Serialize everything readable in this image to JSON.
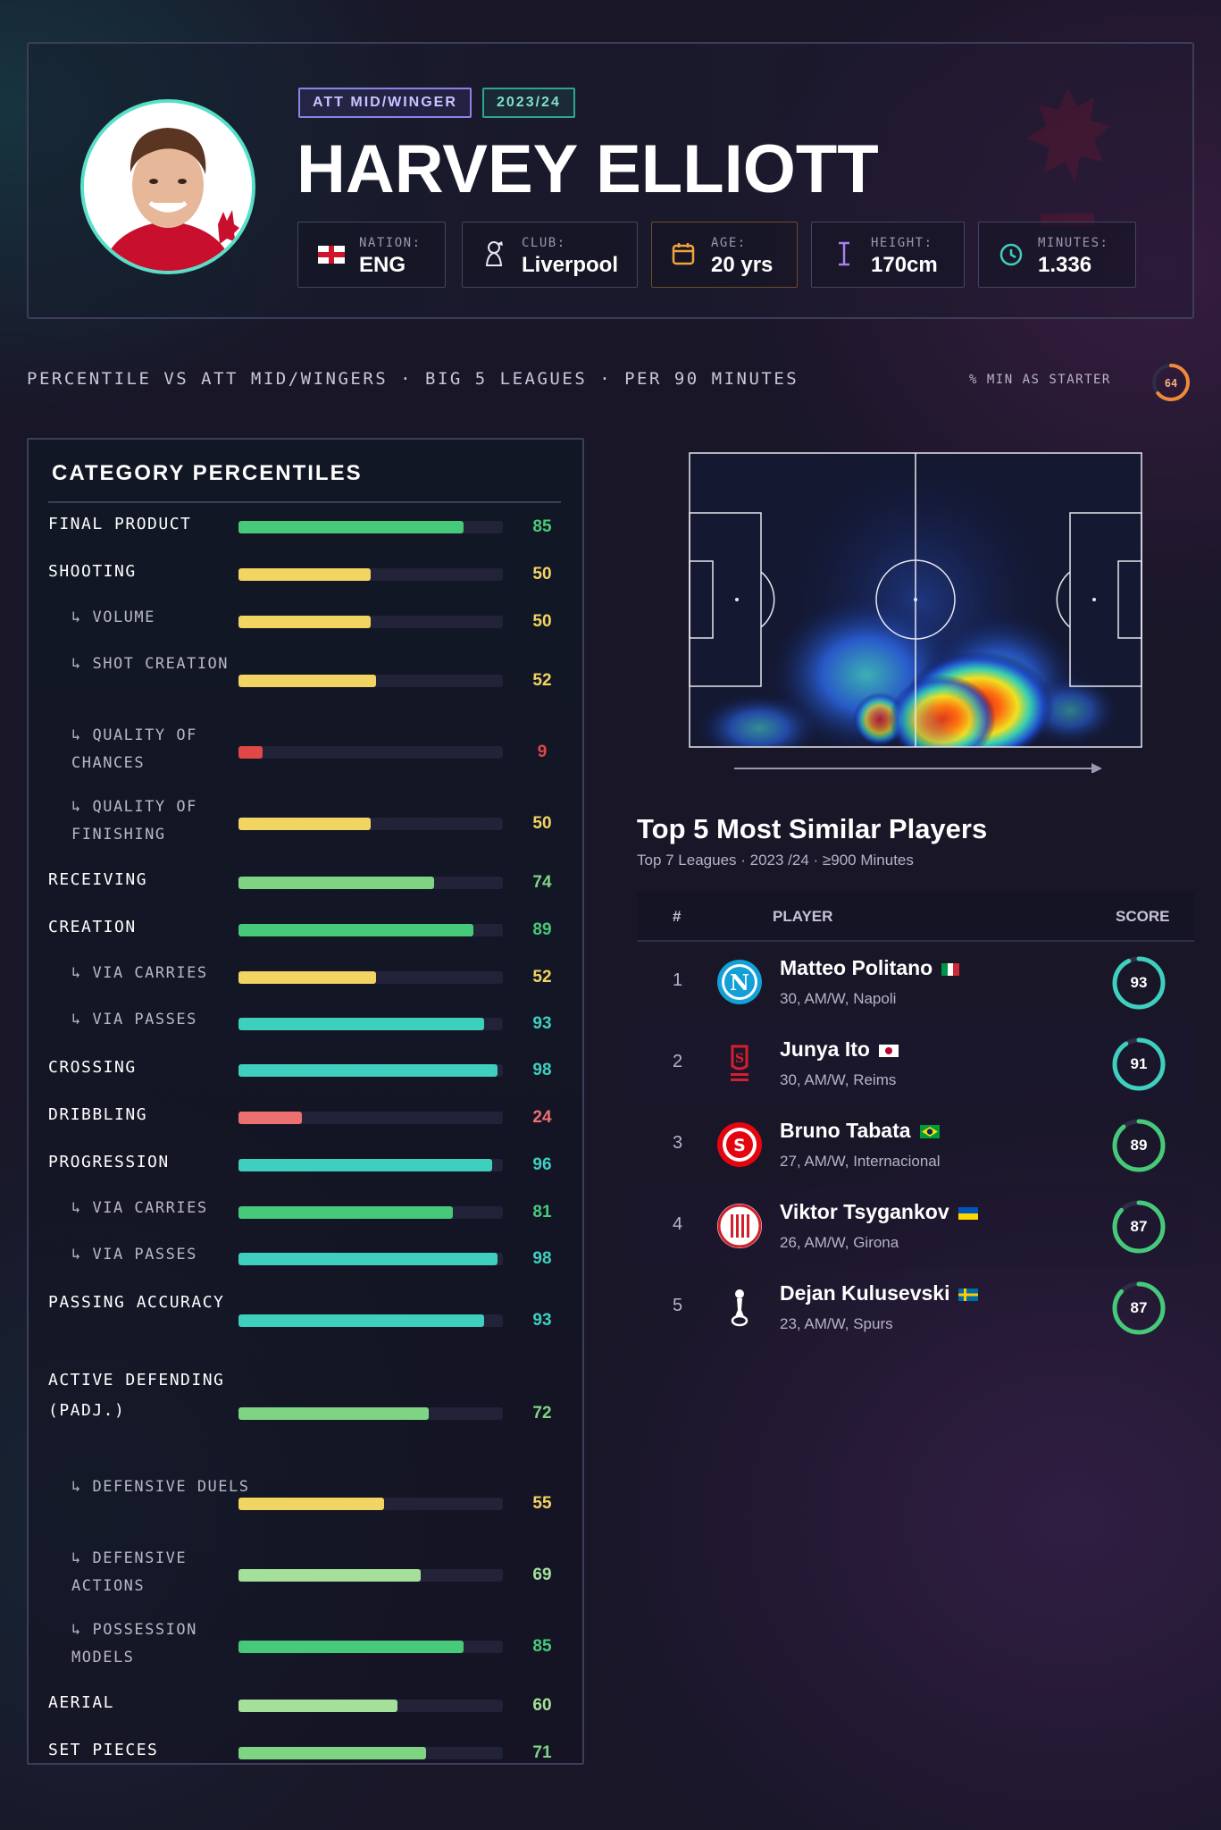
{
  "header": {
    "position_tag": "ATT MID/WINGER",
    "season_tag": "2023/24",
    "player_name": "HARVEY ELLIOTT",
    "avatar_badge_text": "LFC",
    "info": [
      {
        "label": "NATION:",
        "value": "ENG",
        "icon": "england-flag-icon"
      },
      {
        "label": "CLUB:",
        "value": "Liverpool",
        "icon": "premier-league-icon"
      },
      {
        "label": "AGE:",
        "value": "20 yrs",
        "icon": "calendar-icon"
      },
      {
        "label": "HEIGHT:",
        "value": "170cm",
        "icon": "height-icon"
      },
      {
        "label": "MINUTES:",
        "value": "1.336",
        "icon": "clock-icon"
      }
    ]
  },
  "subtitle": "PERCENTILE VS ATT MID/WINGERS · BIG 5 LEAGUES · PER 90 MINUTES",
  "starter": {
    "label": "% MIN AS STARTER",
    "value": "64",
    "percent": 64
  },
  "category_panel": {
    "title": "CATEGORY PERCENTILES"
  },
  "chart_data": {
    "type": "bar",
    "title": "CATEGORY PERCENTILES",
    "xlim": [
      0,
      100
    ],
    "rows": [
      {
        "label": "FINAL PRODUCT",
        "value": 85,
        "sub": false,
        "color": "#47c97a"
      },
      {
        "label": "SHOOTING",
        "value": 50,
        "sub": false,
        "color": "#f2d463"
      },
      {
        "label": "↳ VOLUME",
        "value": 50,
        "sub": true,
        "color": "#f2d463"
      },
      {
        "label": "↳ SHOT CREATION",
        "value": 52,
        "sub": true,
        "color": "#f2d463"
      },
      {
        "label": "↳ QUALITY OF CHANCES",
        "value": 9,
        "sub": true,
        "color": "#e04848"
      },
      {
        "label": "↳ QUALITY OF FINISHING",
        "value": 50,
        "sub": true,
        "color": "#f2d463"
      },
      {
        "label": "RECEIVING",
        "value": 74,
        "sub": false,
        "color": "#7ed483"
      },
      {
        "label": "CREATION",
        "value": 89,
        "sub": false,
        "color": "#47c97a"
      },
      {
        "label": "↳ VIA CARRIES",
        "value": 52,
        "sub": true,
        "color": "#f2d463"
      },
      {
        "label": "↳ VIA PASSES",
        "value": 93,
        "sub": true,
        "color": "#3ecfbf"
      },
      {
        "label": "CROSSING",
        "value": 98,
        "sub": false,
        "color": "#3ecfbf"
      },
      {
        "label": "DRIBBLING",
        "value": 24,
        "sub": false,
        "color": "#ec7070"
      },
      {
        "label": "PROGRESSION",
        "value": 96,
        "sub": false,
        "color": "#3ecfbf"
      },
      {
        "label": "↳ VIA CARRIES",
        "value": 81,
        "sub": true,
        "color": "#47c97a"
      },
      {
        "label": "↳ VIA PASSES",
        "value": 98,
        "sub": true,
        "color": "#3ecfbf"
      },
      {
        "label": "PASSING ACCURACY",
        "value": 93,
        "sub": false,
        "color": "#3ecfbf"
      },
      {
        "label": "ACTIVE DEFENDING (PADJ.)",
        "value": 72,
        "sub": false,
        "color": "#7ed483"
      },
      {
        "label": "↳ DEFENSIVE DUELS",
        "value": 55,
        "sub": true,
        "color": "#f2d463"
      },
      {
        "label": "↳ DEFENSIVE ACTIONS",
        "value": 69,
        "sub": true,
        "color": "#a5e09b"
      },
      {
        "label": "↳ POSSESSION MODELS",
        "value": 85,
        "sub": true,
        "color": "#47c97a"
      },
      {
        "label": "AERIAL",
        "value": 60,
        "sub": false,
        "color": "#a5e09b"
      },
      {
        "label": "SET PIECES",
        "value": 71,
        "sub": false,
        "color": "#7ed483"
      }
    ]
  },
  "similar": {
    "title": "Top 5 Most Similar Players",
    "subtitle": "Top 7 Leagues · 2023 /24 · ≥900 Minutes",
    "columns": {
      "rank": "#",
      "player": "PLAYER",
      "score": "SCORE"
    },
    "players": [
      {
        "rank": "1",
        "name": "Matteo Politano",
        "meta": "30, AM/W, Napoli",
        "score": "93",
        "score_value": 93,
        "color": "#3ecfbf",
        "badge": "napoli-badge-icon",
        "flag": "italy-flag-icon"
      },
      {
        "rank": "2",
        "name": "Junya Ito",
        "meta": "30, AM/W, Reims",
        "score": "91",
        "score_value": 91,
        "color": "#3ecfbf",
        "badge": "reims-badge-icon",
        "flag": "japan-flag-icon"
      },
      {
        "rank": "3",
        "name": "Bruno Tabata",
        "meta": "27, AM/W, Internacional",
        "score": "89",
        "score_value": 89,
        "color": "#47c97a",
        "badge": "internacional-badge-icon",
        "flag": "brazil-flag-icon"
      },
      {
        "rank": "4",
        "name": "Viktor Tsygankov",
        "meta": "26, AM/W, Girona",
        "score": "87",
        "score_value": 87,
        "color": "#47c97a",
        "badge": "girona-badge-icon",
        "flag": "ukraine-flag-icon"
      },
      {
        "rank": "5",
        "name": "Dejan Kulusevski",
        "meta": "23, AM/W, Spurs",
        "score": "87",
        "score_value": 87,
        "color": "#47c97a",
        "badge": "spurs-badge-icon",
        "flag": "sweden-flag-icon"
      }
    ]
  }
}
